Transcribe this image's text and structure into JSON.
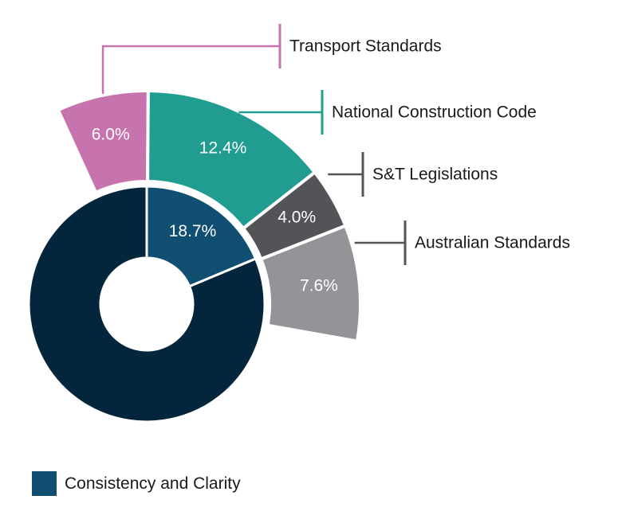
{
  "chart_data": {
    "type": "pie",
    "variant": "donut-with-exploded-breakdown",
    "title": "",
    "slices": [
      {
        "name": "",
        "value": 81.3,
        "label": "",
        "color": "#04263d"
      },
      {
        "name": "Consistency and Clarity",
        "value": 18.7,
        "label": "18.7%",
        "color": "#104f71"
      }
    ],
    "breakdown": {
      "of_slice": "Consistency and Clarity",
      "items": [
        {
          "name": "Transport Standards",
          "value": 6.0,
          "label": "6.0%",
          "color": "#c673ae"
        },
        {
          "name": "National Construction Code",
          "value": 12.4,
          "label": "12.4%",
          "color": "#209c91"
        },
        {
          "name": "S&T Legislations",
          "value": 4.0,
          "label": "4.0%",
          "color": "#535458"
        },
        {
          "name": "Australian Standards",
          "value": 7.6,
          "label": "7.6%",
          "color": "#939497"
        }
      ]
    },
    "legend": {
      "position": "bottom-left",
      "entries": [
        {
          "name": "Consistency and Clarity",
          "color": "#104f71"
        }
      ]
    }
  }
}
